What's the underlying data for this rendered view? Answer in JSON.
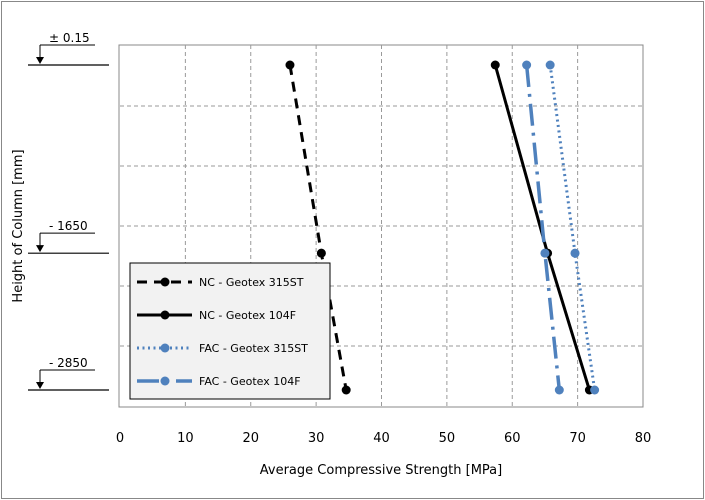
{
  "chart_data": {
    "type": "line",
    "title": "",
    "xlabel": "Average Compressive Strength [MPa]",
    "ylabel": "Height of Column [mm]",
    "xlim": [
      0,
      80
    ],
    "xticks": [
      "0",
      "10",
      "20",
      "30",
      "40",
      "50",
      "60",
      "70",
      "80"
    ],
    "grid": true,
    "legend_position": "lower-left",
    "height_levels": [
      {
        "label": "± 0.15",
        "value": 0.15
      },
      {
        "label": "- 1650",
        "value": -1650
      },
      {
        "label": "- 2850",
        "value": -2850
      }
    ],
    "series": [
      {
        "name": "NC - Geotex 315ST",
        "style": "dashed",
        "color": "#000000",
        "points": [
          {
            "x": 26,
            "y": 0.15
          },
          {
            "x": 30.8,
            "y": -1650
          },
          {
            "x": 34.6,
            "y": -2850
          }
        ]
      },
      {
        "name": "NC - Geotex 104F",
        "style": "solid",
        "color": "#000000",
        "points": [
          {
            "x": 57.4,
            "y": 0.15
          },
          {
            "x": 65.4,
            "y": -1650
          },
          {
            "x": 71.8,
            "y": -2850
          }
        ]
      },
      {
        "name": "FAC - Geotex 315ST",
        "style": "dotted",
        "color": "#4f81bd",
        "points": [
          {
            "x": 65.8,
            "y": 0.15
          },
          {
            "x": 69.6,
            "y": -1650
          },
          {
            "x": 72.6,
            "y": -2850
          }
        ]
      },
      {
        "name": "FAC - Geotex 104F",
        "style": "dashdot",
        "color": "#4f81bd",
        "points": [
          {
            "x": 62.2,
            "y": 0.15
          },
          {
            "x": 65.0,
            "y": -1650
          },
          {
            "x": 67.2,
            "y": -2850
          }
        ]
      }
    ]
  }
}
